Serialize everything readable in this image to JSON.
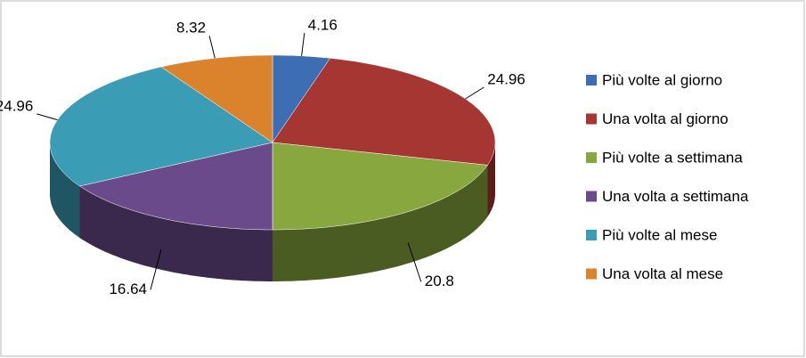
{
  "chart_data": {
    "type": "pie3d",
    "categories": [
      "Più volte al giorno",
      "Una volta al giorno",
      "Più volte a settimana",
      "Una volta a settimana",
      "Più volte al mese",
      "Una volta al mese"
    ],
    "values": [
      4.16,
      24.96,
      20.8,
      16.64,
      24.96,
      8.32
    ],
    "colors": [
      "#3d6eb3",
      "#a63631",
      "#88a73f",
      "#6a4a8b",
      "#3b9cb5",
      "#db822d"
    ],
    "legend": "right"
  }
}
